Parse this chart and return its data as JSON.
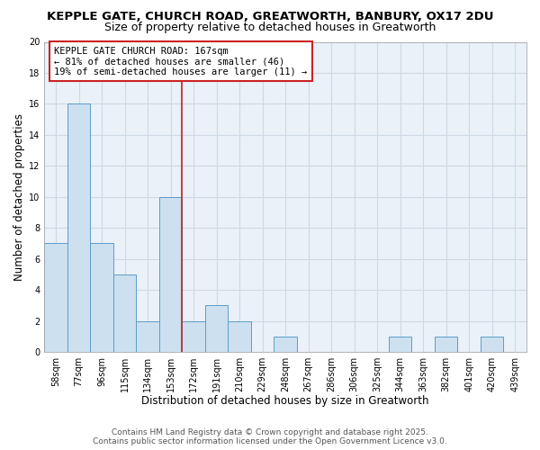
{
  "title": "KEPPLE GATE, CHURCH ROAD, GREATWORTH, BANBURY, OX17 2DU",
  "subtitle": "Size of property relative to detached houses in Greatworth",
  "xlabel": "Distribution of detached houses by size in Greatworth",
  "ylabel": "Number of detached properties",
  "categories": [
    "58sqm",
    "77sqm",
    "96sqm",
    "115sqm",
    "134sqm",
    "153sqm",
    "172sqm",
    "191sqm",
    "210sqm",
    "229sqm",
    "248sqm",
    "267sqm",
    "286sqm",
    "306sqm",
    "325sqm",
    "344sqm",
    "363sqm",
    "382sqm",
    "401sqm",
    "420sqm",
    "439sqm"
  ],
  "values": [
    7,
    16,
    7,
    5,
    2,
    10,
    2,
    3,
    2,
    0,
    1,
    0,
    0,
    0,
    0,
    1,
    0,
    1,
    0,
    1,
    0
  ],
  "bar_color": "#cde0ef",
  "bar_edge_color": "#5b9dc9",
  "grid_color": "#cdd9e5",
  "background_color": "#eaf1f8",
  "vline_x": 5.5,
  "vline_color": "#bb2222",
  "ylim": [
    0,
    20
  ],
  "yticks": [
    0,
    2,
    4,
    6,
    8,
    10,
    12,
    14,
    16,
    18,
    20
  ],
  "annotation_title": "KEPPLE GATE CHURCH ROAD: 167sqm",
  "annotation_line1": "← 81% of detached houses are smaller (46)",
  "annotation_line2": "19% of semi-detached houses are larger (11) →",
  "footer_line1": "Contains HM Land Registry data © Crown copyright and database right 2025.",
  "footer_line2": "Contains public sector information licensed under the Open Government Licence v3.0.",
  "title_fontsize": 9.5,
  "subtitle_fontsize": 9,
  "axis_label_fontsize": 8.5,
  "tick_fontsize": 7,
  "annotation_fontsize": 7.5,
  "footer_fontsize": 6.5
}
